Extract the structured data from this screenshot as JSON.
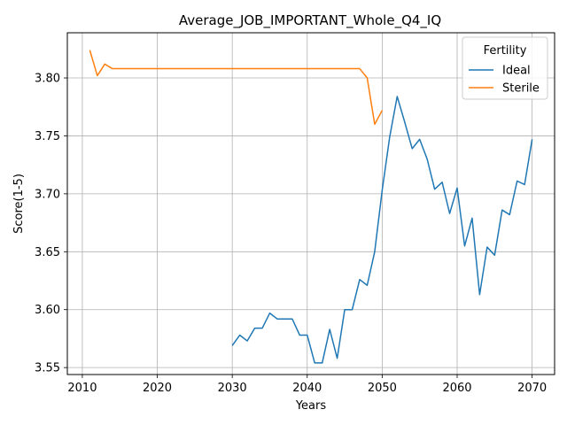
{
  "chart_data": {
    "type": "line",
    "title": "Average_JOB_IMPORTANT_Whole_Q4_IQ",
    "xlabel": "Years",
    "ylabel": "Score(1-5)",
    "xlim": [
      2008,
      2073
    ],
    "ylim": [
      3.544,
      3.839
    ],
    "xticks": [
      2010,
      2020,
      2030,
      2040,
      2050,
      2060,
      2070
    ],
    "yticks": [
      3.55,
      3.6,
      3.65,
      3.7,
      3.75,
      3.8
    ],
    "grid": true,
    "legend": {
      "title": "Fertility",
      "position": "top-right"
    },
    "series": [
      {
        "name": "Ideal",
        "color": "#1f77b4",
        "x": [
          2030,
          2031,
          2032,
          2033,
          2034,
          2035,
          2036,
          2037,
          2038,
          2039,
          2040,
          2041,
          2042,
          2043,
          2044,
          2045,
          2046,
          2047,
          2048,
          2049,
          2050,
          2051,
          2052,
          2053,
          2054,
          2055,
          2056,
          2057,
          2058,
          2059,
          2060,
          2061,
          2062,
          2063,
          2064,
          2065,
          2066,
          2067,
          2068,
          2069,
          2070
        ],
        "values": [
          3.569,
          3.578,
          3.573,
          3.584,
          3.584,
          3.597,
          3.592,
          3.592,
          3.592,
          3.578,
          3.578,
          3.554,
          3.554,
          3.583,
          3.558,
          3.6,
          3.6,
          3.626,
          3.621,
          3.65,
          3.703,
          3.749,
          3.784,
          3.762,
          3.739,
          3.747,
          3.73,
          3.704,
          3.71,
          3.683,
          3.705,
          3.655,
          3.679,
          3.613,
          3.654,
          3.647,
          3.686,
          3.682,
          3.711,
          3.708,
          3.747
        ]
      },
      {
        "name": "Sterile",
        "color": "#ff7f0e",
        "x": [
          2011,
          2012,
          2013,
          2014,
          2015,
          2020,
          2025,
          2030,
          2035,
          2040,
          2045,
          2046,
          2047,
          2048,
          2049,
          2050
        ],
        "values": [
          3.824,
          3.802,
          3.812,
          3.808,
          3.808,
          3.808,
          3.808,
          3.808,
          3.808,
          3.808,
          3.808,
          3.808,
          3.808,
          3.8,
          3.76,
          3.772
        ]
      }
    ]
  }
}
